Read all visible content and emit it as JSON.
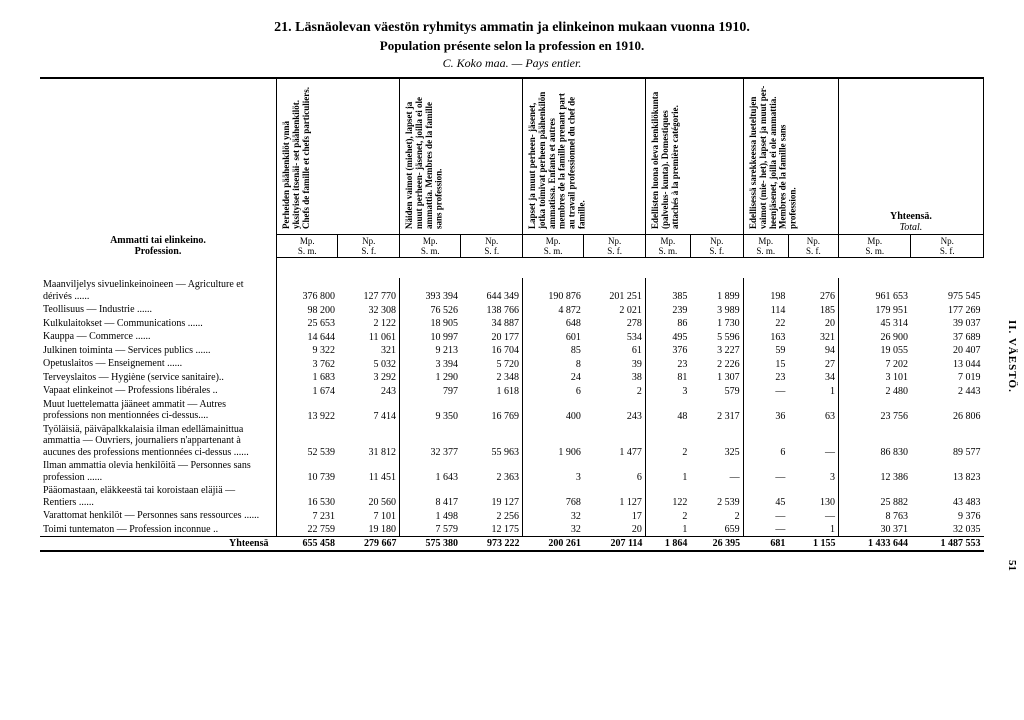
{
  "titles": {
    "line1": "21.  Läsnäolevan väestön ryhmitys ammatin ja elinkeinon mukaan vuonna 1910.",
    "line2": "Population présente selon la profession en 1910.",
    "line3": "C.  Koko maa. — Pays entier."
  },
  "side_label": "II.  VÄESTÖ.",
  "page_number": "51",
  "row_header": {
    "prof_fi": "Ammatti tai elinkeino.",
    "prof_fr": "Profession."
  },
  "col_headers": [
    "Perheiden päähenkilöt ynnä yksityiset itsenäi- set päähenkilöt. Chefs de famille et chefs particuliers.",
    "Näiden vaimot (miehet), lapset ja muut perheen- jäsenet, joilla ei ole ammattia. Membres de la famille sans profession.",
    "Lapset ja muut perheen- jäsenet, jotka toimivat perheen päähenkilön ammatissa. Enfants et autres membres de la famille prenant part au travail professionnel du chef de famille.",
    "Edellisten luona oleva henkilökunta (palvelus- kunta). Domestiques attachés à la première catégorie.",
    "Edellisessä sarekkeessa lueteltujen vaimot (mie- het), lapset ja muut per- heenjäsenet, joilla ei ole ammattia. Membres de la famille sans profession."
  ],
  "ytot_head1": "Yhteensä.",
  "ytot_head2": "Total.",
  "units": {
    "mp": "Mp.",
    "np": "Np.",
    "sm": "S. m.",
    "sf": "S. f."
  },
  "rows": [
    {
      "label": "Maanviljelys sivuelinkeinoineen — Agriculture et dérivés",
      "v": [
        "376 800",
        "127 770",
        "393 394",
        "644 349",
        "190 876",
        "201 251",
        "385",
        "1 899",
        "198",
        "276",
        "961 653",
        "975 545"
      ]
    },
    {
      "label": "Teollisuus — Industrie",
      "v": [
        "98 200",
        "32 308",
        "76 526",
        "138 766",
        "4 872",
        "2 021",
        "239",
        "3 989",
        "114",
        "185",
        "179 951",
        "177 269"
      ]
    },
    {
      "label": "Kulkulaitokset — Communications",
      "v": [
        "25 653",
        "2 122",
        "18 905",
        "34 887",
        "648",
        "278",
        "86",
        "1 730",
        "22",
        "20",
        "45 314",
        "39 037"
      ]
    },
    {
      "label": "Kauppa — Commerce",
      "v": [
        "14 644",
        "11 061",
        "10 997",
        "20 177",
        "601",
        "534",
        "495",
        "5 596",
        "163",
        "321",
        "26 900",
        "37 689"
      ]
    },
    {
      "label": "Julkinen toiminta — Services publics",
      "v": [
        "9 322",
        "321",
        "9 213",
        "16 704",
        "85",
        "61",
        "376",
        "3 227",
        "59",
        "94",
        "19 055",
        "20 407"
      ]
    },
    {
      "label": "Opetuslaitos — Enseignement",
      "v": [
        "3 762",
        "5 032",
        "3 394",
        "5 720",
        "8",
        "39",
        "23",
        "2 226",
        "15",
        "27",
        "7 202",
        "13 044"
      ]
    },
    {
      "label": "Terveyslaitos — Hygiène (service sanitaire)..",
      "v": [
        "1 683",
        "3 292",
        "1 290",
        "2 348",
        "24",
        "38",
        "81",
        "1 307",
        "23",
        "34",
        "3 101",
        "7 019"
      ]
    },
    {
      "label": "Vapaat elinkeinot — Professions libérales ..",
      "v": [
        "1 674",
        "243",
        "797",
        "1 618",
        "6",
        "2",
        "3",
        "579",
        "—",
        "1",
        "2 480",
        "2 443"
      ]
    },
    {
      "label": "Muut luettelematta jääneet ammatit — Autres professions non mentionnées ci-dessus....",
      "v": [
        "13 922",
        "7 414",
        "9 350",
        "16 769",
        "400",
        "243",
        "48",
        "2 317",
        "36",
        "63",
        "23 756",
        "26 806"
      ]
    },
    {
      "label": "Työläisiä, päiväpalkkalaisia ilman edellämainittua ammattia — Ouvriers, journaliers n'appartenant à aucunes des professions mentionnées ci-dessus",
      "v": [
        "52 539",
        "31 812",
        "32 377",
        "55 963",
        "1 906",
        "1 477",
        "2",
        "325",
        "6",
        "—",
        "86 830",
        "89 577"
      ]
    },
    {
      "label": "Ilman ammattia olevia henkilöitä — Personnes sans profession",
      "v": [
        "10 739",
        "11 451",
        "1 643",
        "2 363",
        "3",
        "6",
        "1",
        "—",
        "—",
        "3",
        "12 386",
        "13 823"
      ]
    },
    {
      "label": "Pääomastaan, eläkkeestä tai koroistaan eläjiä — Rentiers",
      "v": [
        "16 530",
        "20 560",
        "8 417",
        "19 127",
        "768",
        "1 127",
        "122",
        "2 539",
        "45",
        "130",
        "25 882",
        "43 483"
      ]
    },
    {
      "label": "Varattomat henkilöt — Personnes sans ressources",
      "v": [
        "7 231",
        "7 101",
        "1 498",
        "2 256",
        "32",
        "17",
        "2",
        "2",
        "—",
        "—",
        "8 763",
        "9 376"
      ]
    },
    {
      "label": "Toimi tuntematon — Profession inconnue ..",
      "v": [
        "22 759",
        "19 180",
        "7 579",
        "12 175",
        "32",
        "20",
        "1",
        "659",
        "—",
        "1",
        "30 371",
        "32 035"
      ]
    }
  ],
  "totals": {
    "label": "Yhteensä",
    "v": [
      "655 458",
      "279 667",
      "575 380",
      "973 222",
      "200 261",
      "207 114",
      "1 864",
      "26 395",
      "681",
      "1 155",
      "1 433 644",
      "1 487 553"
    ]
  }
}
